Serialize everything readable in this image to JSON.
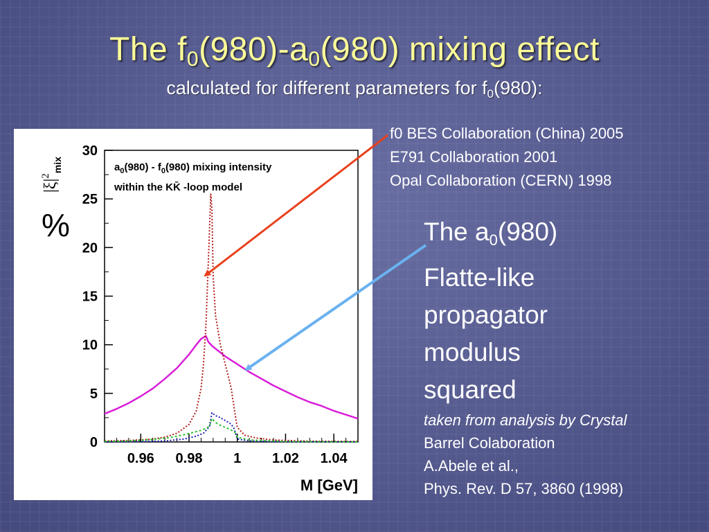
{
  "slide": {
    "title_pre": "The f",
    "title_sub1": "0",
    "title_mid": "(980)-a",
    "title_sub2": "0",
    "title_post": "(980) mixing effect",
    "subtitle_pre": "calculated for different parameters for f",
    "subtitle_sub": "0",
    "subtitle_post": "(980):"
  },
  "references": [
    "f0 BES Collaboration (China) 2005",
    "E791 Collaboration 2001",
    "Opal Collaboration (CERN) 1998"
  ],
  "annotation": {
    "line1_pre": "The a",
    "line1_sub": "0",
    "line1_post": "(980)",
    "line2": "Flatte-like",
    "line3": "propagator",
    "line4": "modulus",
    "line5": "squared",
    "source1": "taken from analysis by Crystal",
    "source2": "Barrel Colaboration",
    "source3": "A.Abele et al.,",
    "source4": "Phys. Rev. D 57, 3860 (1998)"
  },
  "colors": {
    "title": "#ffff99",
    "arrow_red": "#e8401c",
    "arrow_blue": "#6ab2f0",
    "magenta": "#d81ed8",
    "darkred": "#b01818",
    "navy": "#1a1ab0",
    "green": "#30c030"
  },
  "chart_data": {
    "type": "line",
    "ylabel_sym": "|ξ|",
    "ylabel_sup": "2",
    "ylabel_sub": "mix",
    "percent": "%",
    "xlabel": "M [GeV]",
    "inset_line1_a": "a",
    "inset_line1_s1": "0",
    "inset_line1_b": "(980) - f",
    "inset_line1_s2": "0",
    "inset_line1_c": "(980) mixing intensity",
    "inset_line2": "within the KK̄ -loop model",
    "xlim": [
      0.945,
      1.05
    ],
    "ylim": [
      0,
      30
    ],
    "xticks": [
      0.96,
      0.98,
      1,
      1.02,
      1.04
    ],
    "xtick_labels": [
      "0.96",
      "0.98",
      "1",
      "1.02",
      "1.04"
    ],
    "yticks": [
      0,
      5,
      10,
      15,
      20,
      25,
      30
    ],
    "ytick_labels": [
      "0",
      "5",
      "10",
      "15",
      "20",
      "25",
      "30"
    ],
    "series": [
      {
        "color": "#d81ed8",
        "style": "solid",
        "x": [
          0.945,
          0.95,
          0.955,
          0.96,
          0.965,
          0.97,
          0.975,
          0.98,
          0.983,
          0.985,
          0.987,
          0.988,
          0.9895,
          0.991,
          0.993,
          0.995,
          1.0,
          1.005,
          1.01,
          1.015,
          1.02,
          1.025,
          1.03,
          1.035,
          1.04,
          1.045,
          1.05
        ],
        "y": [
          2.9,
          3.4,
          4.0,
          4.7,
          5.5,
          6.5,
          7.6,
          9.0,
          10.0,
          10.6,
          10.9,
          10.3,
          9.9,
          9.6,
          9.2,
          8.8,
          8.0,
          7.2,
          6.5,
          5.8,
          5.2,
          4.6,
          4.1,
          3.7,
          3.2,
          2.8,
          2.4
        ]
      },
      {
        "color": "#b01818",
        "style": "dotted",
        "x": [
          0.945,
          0.955,
          0.965,
          0.97,
          0.975,
          0.98,
          0.983,
          0.985,
          0.986,
          0.987,
          0.988,
          0.989,
          0.9895,
          0.99,
          0.991,
          0.993,
          0.995,
          0.9975,
          0.999,
          1.0,
          1.003,
          1.008,
          1.015,
          1.03,
          1.05
        ],
        "y": [
          0.1,
          0.15,
          0.3,
          0.5,
          0.9,
          1.8,
          3.2,
          5.5,
          8.0,
          12.0,
          18.5,
          25.5,
          24.0,
          17.0,
          13.0,
          10.0,
          8.0,
          5.5,
          3.0,
          1.5,
          0.7,
          0.4,
          0.2,
          0.08,
          0.05
        ]
      },
      {
        "color": "#1a1ab0",
        "style": "dotted",
        "x": [
          0.945,
          0.96,
          0.97,
          0.978,
          0.983,
          0.986,
          0.9885,
          0.9895,
          0.991,
          0.993,
          0.995,
          0.997,
          0.9985,
          0.9995,
          1.0,
          1.005,
          1.02,
          1.05
        ],
        "y": [
          0.0,
          0.05,
          0.1,
          0.3,
          0.6,
          0.9,
          1.6,
          3.0,
          2.7,
          2.5,
          2.2,
          1.9,
          1.5,
          0.7,
          0.3,
          0.1,
          0.02,
          0.0
        ]
      },
      {
        "color": "#30c030",
        "style": "dashed",
        "x": [
          0.945,
          0.955,
          0.965,
          0.972,
          0.978,
          0.982,
          0.985,
          0.987,
          0.9885,
          0.9895,
          0.991,
          0.993,
          0.995,
          0.997,
          0.999,
          1.0,
          1.005,
          1.02,
          1.05
        ],
        "y": [
          0.05,
          0.1,
          0.25,
          0.45,
          0.75,
          1.0,
          1.2,
          1.4,
          1.6,
          2.4,
          2.0,
          1.7,
          1.5,
          1.3,
          1.0,
          0.5,
          0.2,
          0.05,
          0.0
        ]
      }
    ]
  }
}
